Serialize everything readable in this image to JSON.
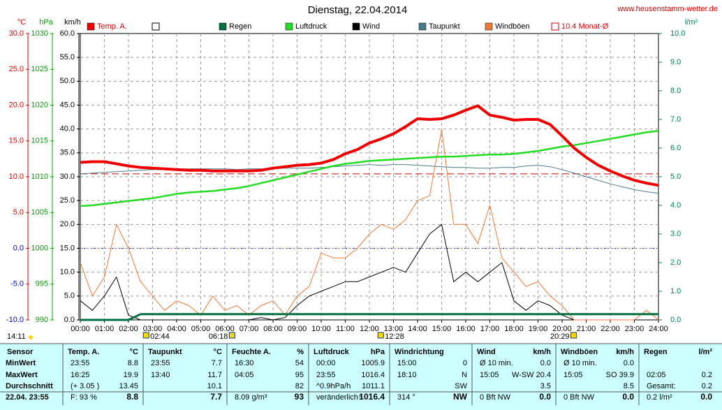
{
  "chart_data": {
    "type": "line",
    "title": "Dienstag, 22.04.2014",
    "site": "www.heusenstamm-wetter.de",
    "axes": [
      {
        "unit": "°C",
        "color": "#e00000",
        "lim": [
          -10,
          30
        ],
        "ticks": [
          {
            "value": -10,
            "label": "-10.0"
          },
          {
            "value": -5,
            "label": "-5.0"
          },
          {
            "value": 0,
            "label": "0.0"
          },
          {
            "value": 5,
            "label": "5.0"
          },
          {
            "value": 10,
            "label": "10.0"
          },
          {
            "value": 15,
            "label": "15.0"
          },
          {
            "value": 20,
            "label": "20.0"
          },
          {
            "value": 25,
            "label": "25.0"
          },
          {
            "value": 30,
            "label": "30.0"
          }
        ]
      },
      {
        "unit": "hPa",
        "color": "#00a000",
        "lim": [
          990,
          1030
        ],
        "ticks": [
          990,
          995,
          1000,
          1005,
          1010,
          1015,
          1020,
          1025,
          1030
        ]
      },
      {
        "unit": "km/h",
        "color": "#000000",
        "lim": [
          0,
          60
        ],
        "ticks": [
          {
            "value": 0,
            "label": "0.0"
          },
          {
            "value": 5,
            "label": "5.0"
          },
          {
            "value": 10,
            "label": "10.0"
          },
          {
            "value": 15,
            "label": "15.0"
          },
          {
            "value": 20,
            "label": "20.0"
          },
          {
            "value": 25,
            "label": "25.0"
          },
          {
            "value": 30,
            "label": "30.0"
          },
          {
            "value": 35,
            "label": "35.0"
          },
          {
            "value": 40,
            "label": "40.0"
          },
          {
            "value": 45,
            "label": "45.0"
          },
          {
            "value": 50,
            "label": "50.0"
          },
          {
            "value": 55,
            "label": "55.0"
          },
          {
            "value": 60,
            "label": "60.0"
          }
        ]
      },
      {
        "unit": "l/m²",
        "color": "#008050",
        "lim": [
          0,
          10
        ],
        "ticks": [
          {
            "value": 0,
            "label": "0.0"
          },
          {
            "value": 1,
            "label": "1.0"
          },
          {
            "value": 2,
            "label": "2.0"
          },
          {
            "value": 3,
            "label": "3.0"
          },
          {
            "value": 4,
            "label": "4.0"
          },
          {
            "value": 5,
            "label": "5.0"
          },
          {
            "value": 6,
            "label": "6.0"
          },
          {
            "value": 7,
            "label": "7.0"
          },
          {
            "value": 8,
            "label": "8.0"
          },
          {
            "value": 9,
            "label": "9.0"
          },
          {
            "value": 10,
            "label": "10.0"
          }
        ]
      }
    ],
    "xlim": [
      0,
      24
    ],
    "xticks": [
      {
        "value": 0,
        "label": "00:00"
      },
      {
        "value": 1,
        "label": "01:00"
      },
      {
        "value": 2,
        "label": "02:00"
      },
      {
        "value": 3,
        "label": "03:00"
      },
      {
        "value": 4,
        "label": "04:00"
      },
      {
        "value": 5,
        "label": "05:00"
      },
      {
        "value": 6,
        "label": "06:00"
      },
      {
        "value": 7,
        "label": "07:00"
      },
      {
        "value": 8,
        "label": "08:00"
      },
      {
        "value": 9,
        "label": "09:00"
      },
      {
        "value": 10,
        "label": "10:00"
      },
      {
        "value": 11,
        "label": "11:00"
      },
      {
        "value": 12,
        "label": "12:00"
      },
      {
        "value": 13,
        "label": "13:00"
      },
      {
        "value": 14,
        "label": "14:00"
      },
      {
        "value": 15,
        "label": "15:00"
      },
      {
        "value": 16,
        "label": "16:00"
      },
      {
        "value": 17,
        "label": "17:00"
      },
      {
        "value": 18,
        "label": "18:00"
      },
      {
        "value": 19,
        "label": "19:00"
      },
      {
        "value": 20,
        "label": "20:00"
      },
      {
        "value": 21,
        "label": "21:00"
      },
      {
        "value": 22,
        "label": "22:00"
      },
      {
        "value": 23,
        "label": "23:00"
      },
      {
        "value": 24,
        "label": "24:00"
      }
    ],
    "grid": true,
    "x": [
      0,
      0.5,
      1,
      1.5,
      2,
      2.5,
      3,
      3.5,
      4,
      4.5,
      5,
      5.5,
      6,
      6.5,
      7,
      7.5,
      8,
      8.5,
      9,
      9.5,
      10,
      10.5,
      11,
      11.5,
      12,
      12.5,
      13,
      13.5,
      14,
      14.5,
      15,
      15.5,
      16,
      16.5,
      17,
      17.5,
      18,
      18.5,
      19,
      19.5,
      20,
      20.5,
      21,
      21.5,
      22,
      22.5,
      23,
      23.5,
      24
    ],
    "series": [
      {
        "name": "Wind",
        "color": "#000000",
        "axis": 2,
        "width": 1,
        "values": [
          4,
          2,
          5,
          9,
          1,
          0,
          0,
          0,
          0,
          0,
          0,
          0,
          0,
          0,
          0,
          0.5,
          0,
          0.5,
          3,
          5,
          6,
          7,
          8,
          8,
          9,
          10,
          11,
          10,
          14,
          18,
          20,
          8,
          10,
          8,
          10,
          12,
          4,
          2,
          4,
          3,
          1,
          0,
          0,
          0,
          0,
          0,
          0,
          0,
          0
        ]
      },
      {
        "name": "Windböen",
        "color": "#f07838",
        "axis": 2,
        "width": 1,
        "values": [
          12,
          5,
          9,
          20,
          15,
          8,
          5,
          2,
          4,
          3,
          1,
          5,
          2,
          3,
          1,
          3,
          4,
          1,
          5,
          7,
          14,
          13,
          13,
          15,
          18,
          20,
          19,
          21,
          25,
          26,
          39.9,
          20,
          20,
          16,
          24,
          13,
          10,
          7,
          8,
          5,
          3,
          0,
          0,
          0,
          0,
          0,
          0,
          2,
          0
        ]
      },
      {
        "name": "Taupunkt",
        "color": "#4a7a8a",
        "axis": 0,
        "width": 1,
        "values": [
          10.4,
          10.5,
          10.6,
          10.7,
          10.8,
          10.9,
          11.0,
          11.0,
          11.1,
          11.1,
          11.1,
          11.1,
          11.1,
          11.0,
          11.1,
          11.1,
          11.1,
          11.2,
          11.2,
          11.2,
          11.3,
          11.4,
          11.5,
          11.6,
          11.7,
          11.6,
          11.7,
          11.7,
          11.6,
          11.5,
          11.4,
          11.3,
          11.3,
          11.2,
          11.2,
          11.3,
          11.3,
          11.5,
          11.6,
          11.4,
          11.0,
          10.5,
          10.0,
          9.5,
          9.0,
          8.6,
          8.2,
          7.9,
          7.7
        ]
      },
      {
        "name": "Regen",
        "color": "#007040",
        "axis": 3,
        "width": 3,
        "values": [
          0,
          0,
          0,
          0,
          0,
          0.2,
          0.2,
          0.2,
          0.2,
          0.2,
          0.2,
          0.2,
          0.2,
          0.2,
          0.2,
          0.2,
          0.2,
          0.2,
          0.2,
          0.2,
          0.2,
          0.2,
          0.2,
          0.2,
          0.2,
          0.2,
          0.2,
          0.2,
          0.2,
          0.2,
          0.2,
          0.2,
          0.2,
          0.2,
          0.2,
          0.2,
          0.2,
          0.2,
          0.2,
          0.2,
          0.2,
          0.2,
          0.2,
          0.2,
          0.2,
          0.2,
          0.2,
          0.2,
          0.2
        ]
      },
      {
        "name": "Luftdruck",
        "color": "#22dd22",
        "axis": 1,
        "width": 2.5,
        "values": [
          1005.9,
          1006.0,
          1006.2,
          1006.4,
          1006.6,
          1006.8,
          1007.0,
          1007.3,
          1007.6,
          1007.8,
          1007.9,
          1008.0,
          1008.2,
          1008.4,
          1008.7,
          1009.1,
          1009.5,
          1009.9,
          1010.3,
          1010.7,
          1011.1,
          1011.5,
          1011.8,
          1012.0,
          1012.2,
          1012.3,
          1012.4,
          1012.5,
          1012.6,
          1012.7,
          1012.8,
          1012.8,
          1012.9,
          1013.0,
          1013.1,
          1013.1,
          1013.2,
          1013.4,
          1013.6,
          1013.9,
          1014.2,
          1014.4,
          1014.7,
          1015.0,
          1015.3,
          1015.6,
          1015.9,
          1016.2,
          1016.4
        ]
      },
      {
        "name": "Temp. A.",
        "color": "#ee0000",
        "axis": 0,
        "width": 4,
        "values": [
          12.0,
          12.1,
          12.1,
          11.8,
          11.5,
          11.3,
          11.2,
          11.1,
          11.0,
          10.9,
          10.9,
          10.8,
          10.8,
          10.8,
          10.8,
          10.9,
          11.2,
          11.4,
          11.6,
          11.7,
          11.9,
          12.4,
          13.2,
          13.8,
          14.7,
          15.3,
          16.0,
          17.0,
          18.1,
          18.0,
          18.1,
          18.6,
          19.3,
          19.9,
          18.6,
          18.3,
          17.9,
          18.0,
          18.0,
          17.3,
          15.7,
          14.0,
          12.7,
          11.6,
          10.8,
          10.1,
          9.5,
          9.1,
          8.8
        ]
      }
    ],
    "monthly_mean": {
      "name": "10.4 Monat-Ø",
      "value": 10.4,
      "color": "#cc0000",
      "axis": 0
    },
    "legend_order": [
      5,
      3,
      4,
      0,
      2,
      1
    ],
    "markers": [
      {
        "x": 2.73,
        "label": "02:44"
      },
      {
        "x": 6.3,
        "label": "06:18"
      },
      {
        "x": 12.47,
        "label": "12:28"
      },
      {
        "x": 20.48,
        "label": "20:29"
      }
    ],
    "corner_time": "14:11"
  },
  "table": {
    "sensor": "Sensor",
    "groups": [
      [
        "Temp. A.",
        "°C"
      ],
      [
        "Taupunkt",
        "°C"
      ],
      [
        "Feuchte A.",
        "%"
      ],
      [
        "Luftdruck",
        "hPa"
      ],
      [
        "Windrichtung",
        null
      ],
      [
        "Wind",
        "km/h"
      ],
      [
        "Windböen",
        "km/h"
      ],
      [
        "Regen",
        "l/m²"
      ]
    ],
    "rows": [
      {
        "label": "MinWert",
        "cells": [
          [
            "23:55",
            "8.8"
          ],
          [
            "23:55",
            "7.7"
          ],
          [
            "16:30",
            "54"
          ],
          [
            "00:00",
            "1005.9"
          ],
          [
            "15:00",
            "0"
          ],
          [
            "Ø 10 min.",
            "0.0"
          ],
          [
            "Ø 10 min.",
            "0.0"
          ],
          [
            null,
            null
          ]
        ]
      },
      {
        "label": "MaxWert",
        "cells": [
          [
            "16:25",
            "19.9"
          ],
          [
            "13:40",
            "11.7"
          ],
          [
            "04:05",
            "95"
          ],
          [
            "23:55",
            "1016.4"
          ],
          [
            "18:10",
            "N"
          ],
          [
            "15:05",
            "W-SW 20.4"
          ],
          [
            "15:05",
            "SO 39.9"
          ],
          [
            "02:05",
            "0.2"
          ]
        ]
      },
      {
        "label": "Durchschnitt",
        "cells": [
          [
            "(+ 3.05 )",
            "13.45"
          ],
          [
            null,
            "10.1"
          ],
          [
            null,
            "82"
          ],
          [
            "^0.9hPa/h",
            "1011.1"
          ],
          [
            null,
            "SW"
          ],
          [
            null,
            "3.5"
          ],
          [
            null,
            "8.5"
          ],
          [
            "Gesamt:",
            "0.2"
          ]
        ]
      },
      {
        "label": "22.04.  23:55",
        "cells": [
          [
            "F: 93 %",
            "8.8"
          ],
          [
            null,
            "7.7"
          ],
          [
            "8.09 g/m³",
            "93"
          ],
          [
            "veränderlich↑",
            "1016.4"
          ],
          [
            "314 °",
            "NW"
          ],
          [
            "0 Bft NW",
            "0.0"
          ],
          [
            "0 Bft NW",
            "0.0"
          ],
          [
            "0.2 l/m²",
            "0.0"
          ]
        ]
      }
    ]
  }
}
